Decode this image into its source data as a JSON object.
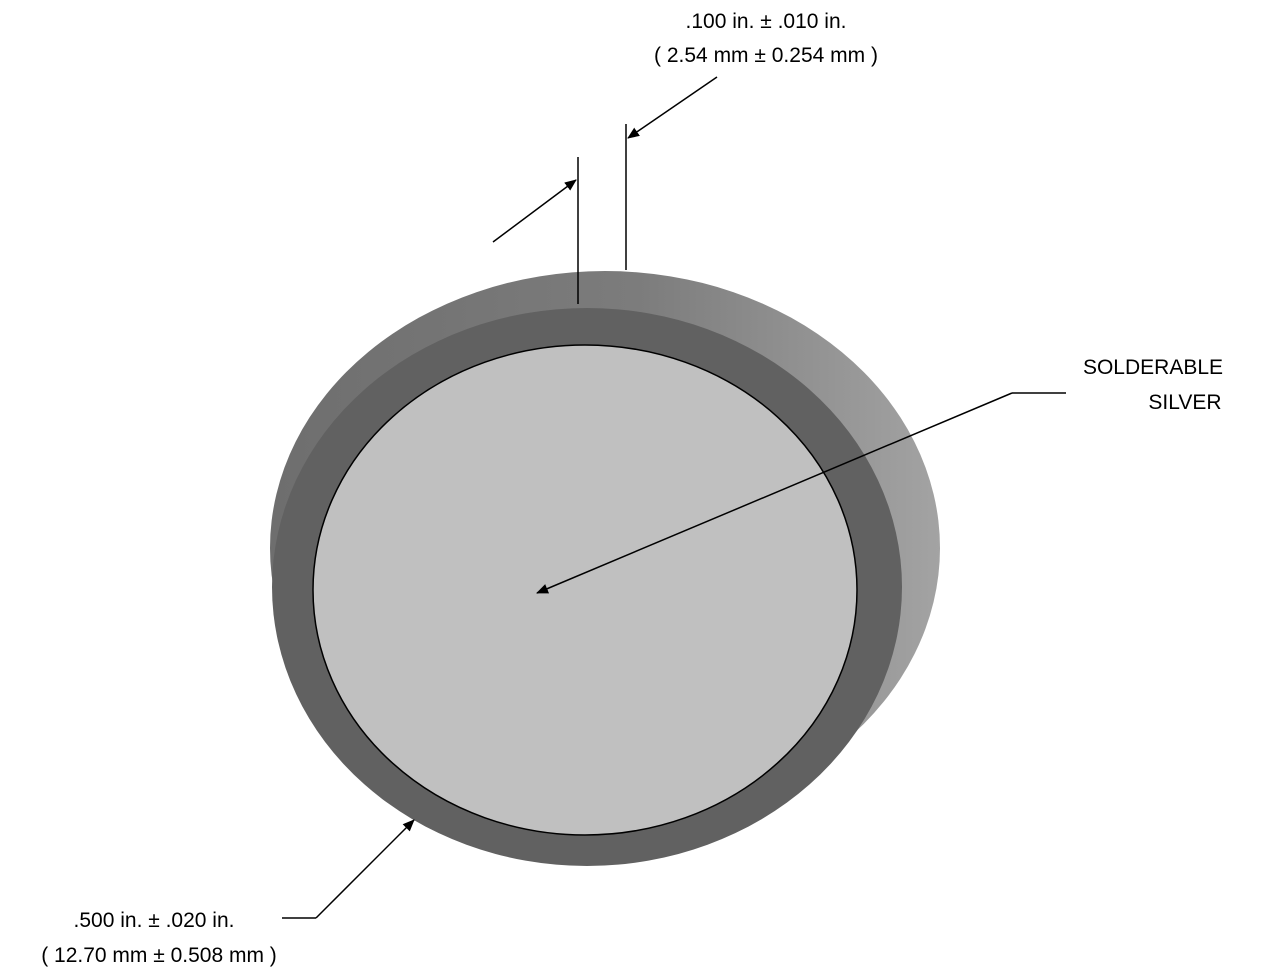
{
  "thickness_dimension": {
    "inch_text": ".100 in. ± .010 in.",
    "mm_text": "( 2.54 mm ± 0.254 mm )"
  },
  "diameter_dimension": {
    "inch_text": ".500 in. ± .020 in.",
    "mm_text": "( 12.70 mm ± 0.508 mm )"
  },
  "material_callout": {
    "line1": "SOLDERABLE",
    "line2": "SILVER"
  },
  "colors": {
    "disc_edge": "#8c8c8c",
    "disc_rim": "#616161",
    "silver_face": "#c0c0c0",
    "line": "#000000"
  }
}
